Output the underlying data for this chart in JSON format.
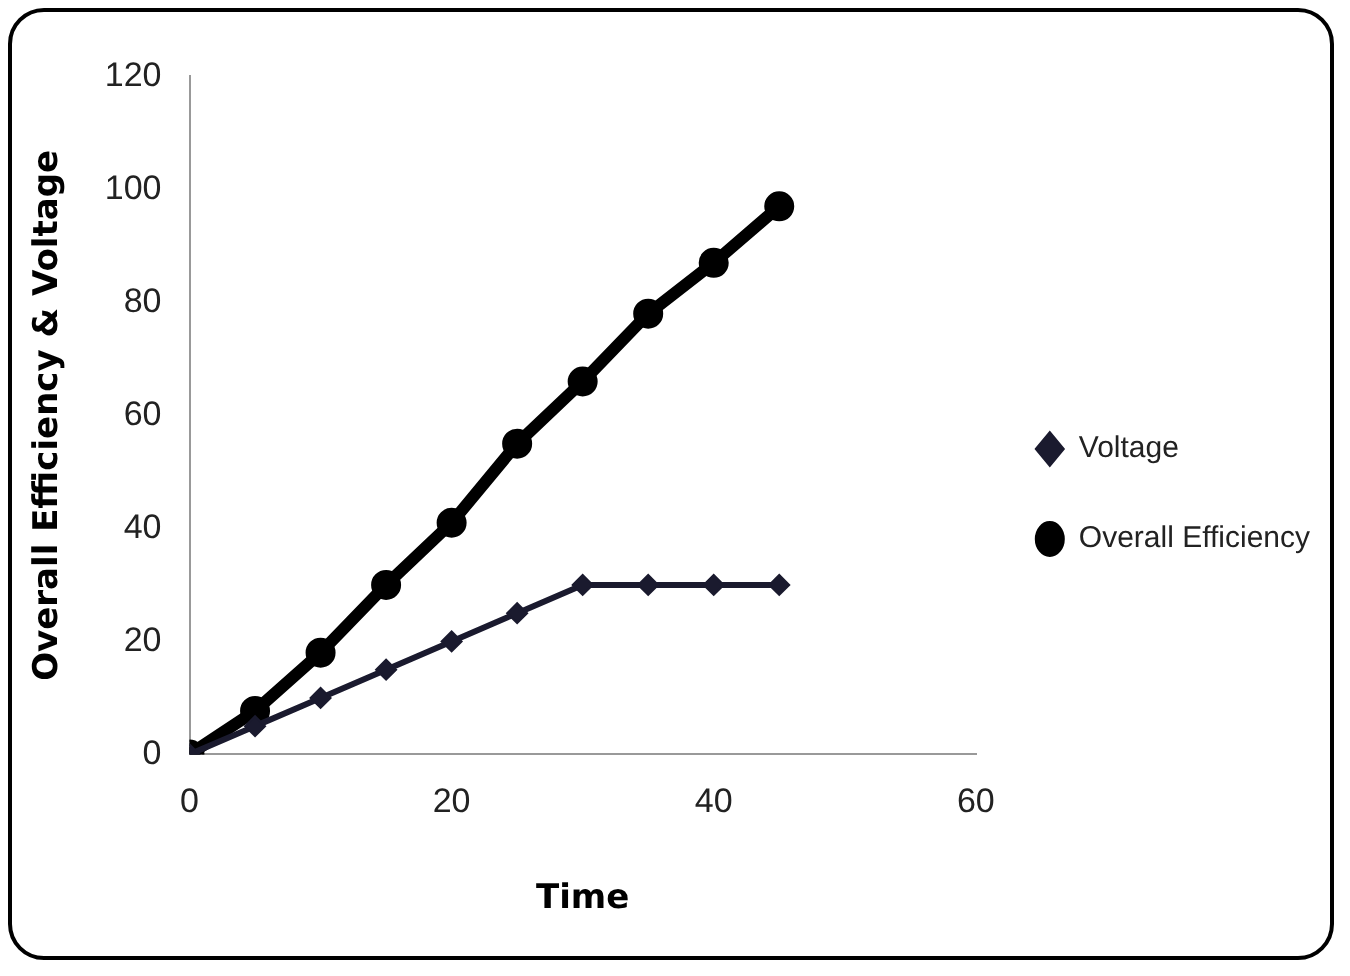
{
  "chart_data": {
    "type": "line",
    "xlabel": "Time",
    "ylabel": "Overall Efficiency & Voltage",
    "x": [
      0,
      5,
      10,
      15,
      20,
      25,
      30,
      35,
      40,
      45
    ],
    "series": [
      {
        "name": "Voltage",
        "color": "#1a1a2e",
        "marker": "diamond",
        "values": [
          0,
          5,
          10,
          15,
          20,
          25,
          30,
          30,
          30,
          30
        ]
      },
      {
        "name": "Overall Efficiency",
        "color": "#000000",
        "marker": "circle",
        "values": [
          0,
          7.7,
          18,
          30,
          41,
          55,
          66,
          78,
          87,
          97
        ]
      }
    ],
    "xlim": [
      0,
      60
    ],
    "xticks": [
      0,
      20,
      40,
      60
    ],
    "ylim": [
      0,
      120
    ],
    "yticks": [
      0,
      20,
      40,
      60,
      80,
      100,
      120
    ],
    "grid": false,
    "legend": "right"
  }
}
